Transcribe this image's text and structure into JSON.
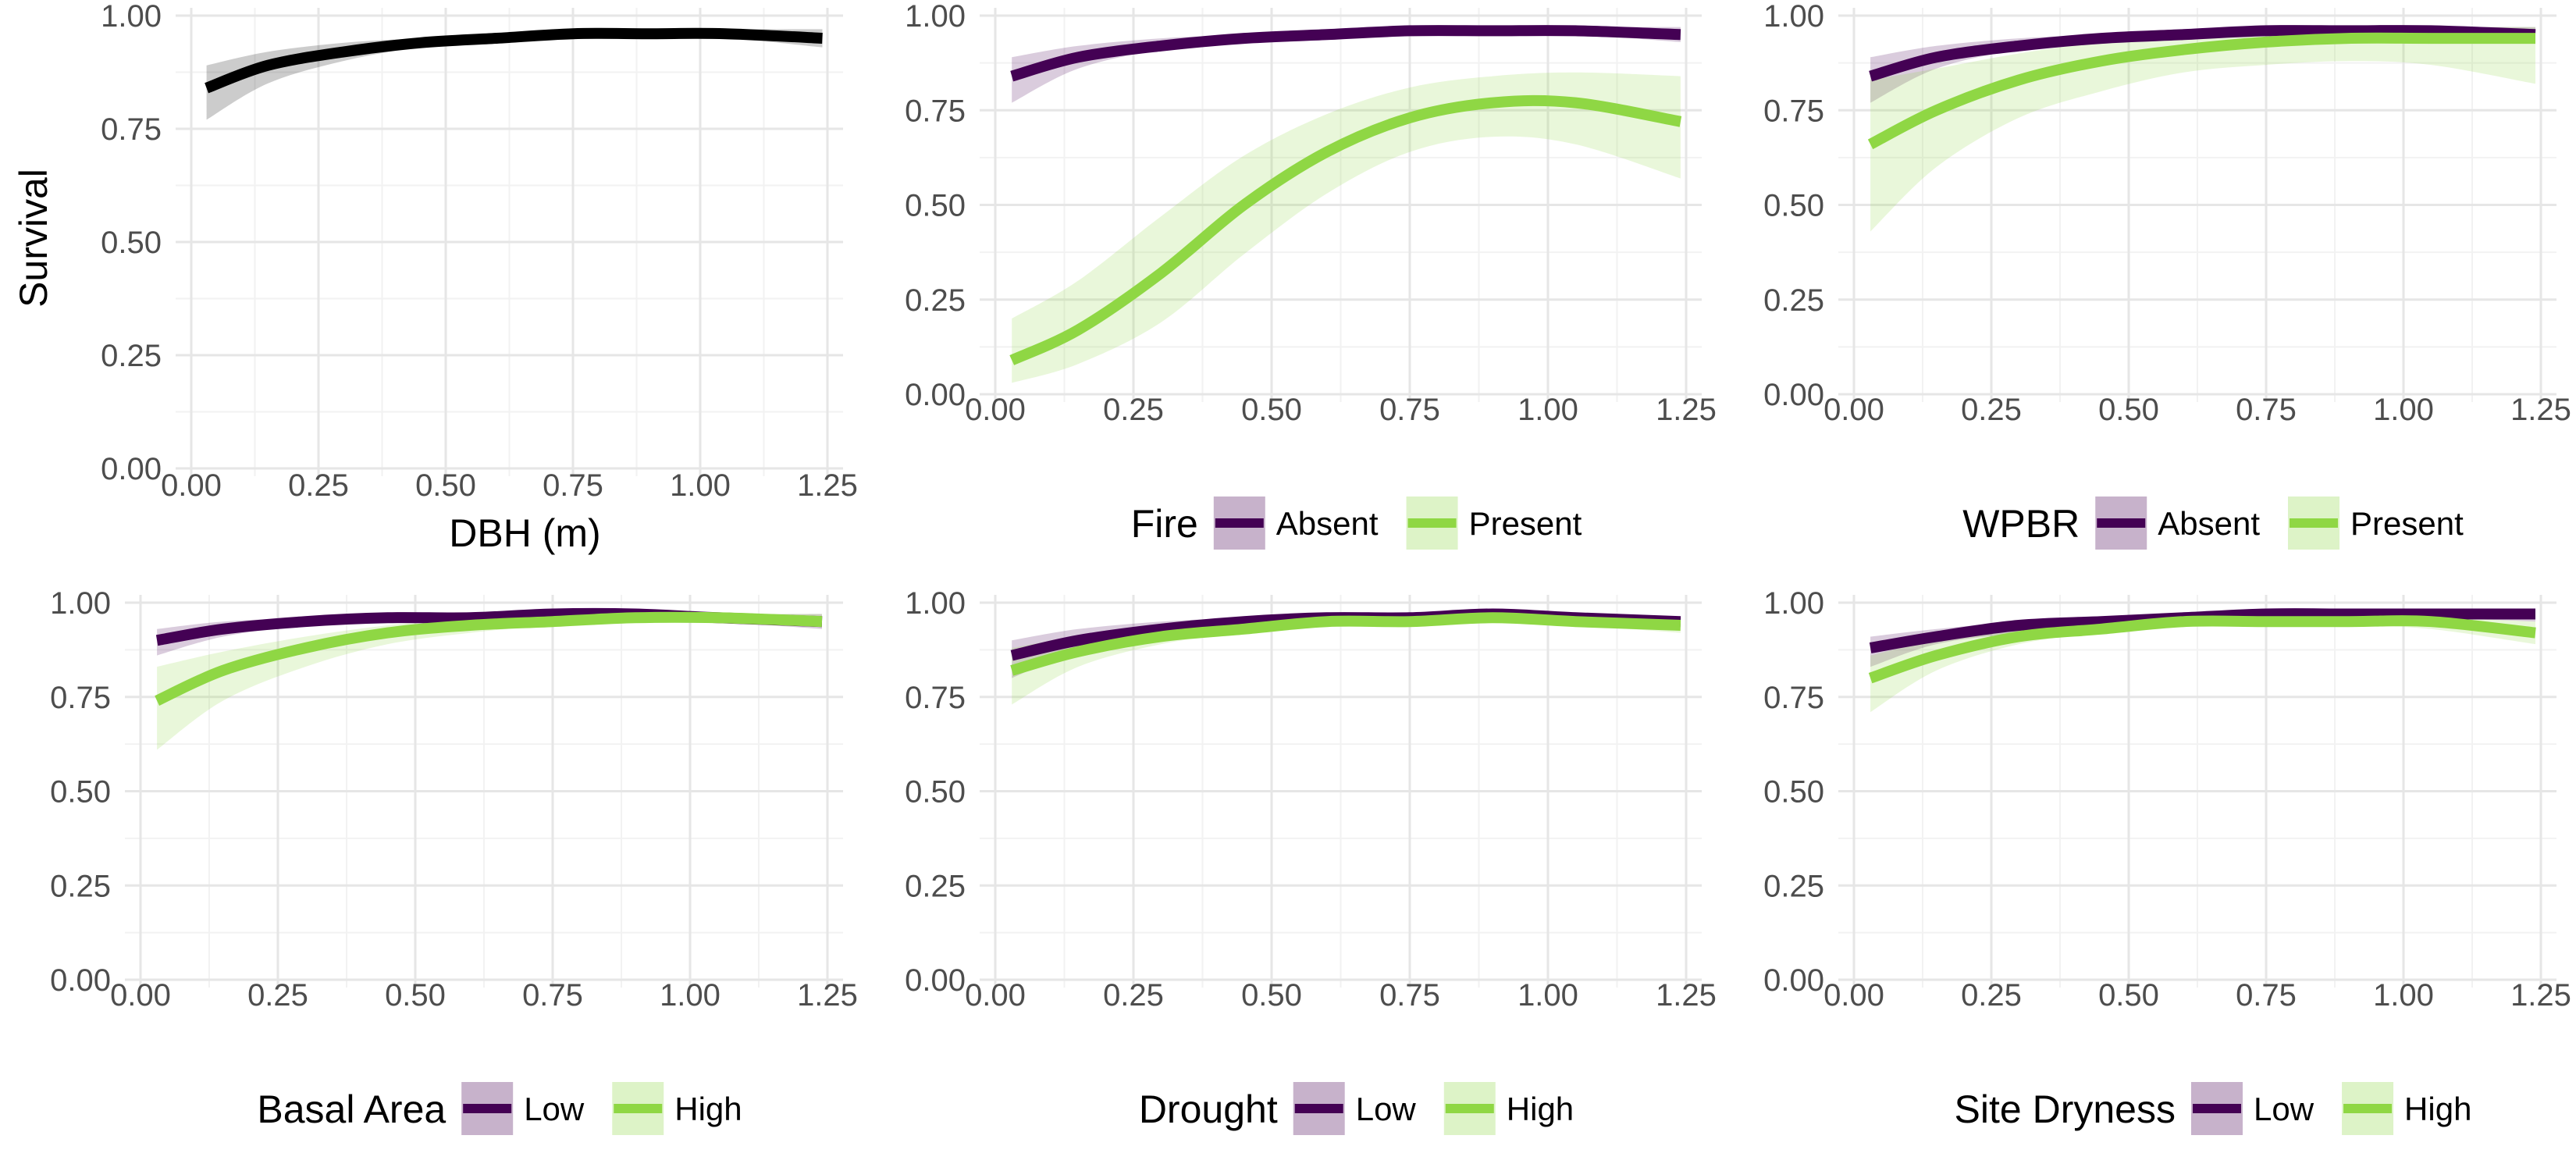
{
  "figure": {
    "y_label": "Survival",
    "colors": {
      "overall": "#000000",
      "purple": "#440154",
      "green": "#8fd744",
      "grid_major": "#e6e6e6",
      "grid_minor": "#f2f2f2",
      "tick_text": "#4d4d4d"
    }
  },
  "chart_data": [
    {
      "type": "line",
      "panel": "DBH",
      "xlabel": "DBH (m)",
      "ylabel": "Survival",
      "xlim": [
        0,
        1.25
      ],
      "ylim": [
        0,
        1
      ],
      "xticks": [
        "0.00",
        "0.25",
        "0.50",
        "0.75",
        "1.00",
        "1.25"
      ],
      "yticks": [
        "0.00",
        "0.25",
        "0.50",
        "0.75",
        "1.00"
      ],
      "x": [
        0.03,
        0.15,
        0.3,
        0.45,
        0.6,
        0.75,
        0.9,
        1.05,
        1.24
      ],
      "series": [
        {
          "key": "overall",
          "values": [
            0.84,
            0.89,
            0.92,
            0.94,
            0.95,
            0.96,
            0.96,
            0.96,
            0.95
          ],
          "lower": [
            0.77,
            0.85,
            0.9,
            0.93,
            0.94,
            0.95,
            0.95,
            0.95,
            0.93
          ],
          "upper": [
            0.89,
            0.92,
            0.94,
            0.95,
            0.96,
            0.97,
            0.97,
            0.97,
            0.97
          ]
        }
      ]
    },
    {
      "type": "line",
      "panel": "Fire",
      "xlim": [
        0,
        1.25
      ],
      "ylim": [
        0,
        1
      ],
      "xticks": [
        "0.00",
        "0.25",
        "0.50",
        "0.75",
        "1.00",
        "1.25"
      ],
      "yticks": [
        "0.00",
        "0.25",
        "0.50",
        "0.75",
        "1.00"
      ],
      "legend": {
        "title": "Fire",
        "position": "bottom"
      },
      "x": [
        0.03,
        0.15,
        0.3,
        0.45,
        0.6,
        0.75,
        0.9,
        1.05,
        1.24
      ],
      "series": [
        {
          "name": "Absent",
          "key": "purple",
          "values": [
            0.84,
            0.89,
            0.92,
            0.94,
            0.95,
            0.96,
            0.96,
            0.96,
            0.95
          ],
          "lower": [
            0.77,
            0.86,
            0.91,
            0.93,
            0.94,
            0.95,
            0.95,
            0.95,
            0.93
          ],
          "upper": [
            0.89,
            0.92,
            0.94,
            0.95,
            0.96,
            0.97,
            0.97,
            0.97,
            0.97
          ]
        },
        {
          "name": "Present",
          "key": "green",
          "values": [
            0.09,
            0.17,
            0.32,
            0.5,
            0.64,
            0.73,
            0.77,
            0.77,
            0.72
          ],
          "lower": [
            0.03,
            0.08,
            0.19,
            0.37,
            0.53,
            0.64,
            0.68,
            0.66,
            0.57
          ],
          "upper": [
            0.2,
            0.3,
            0.47,
            0.63,
            0.74,
            0.81,
            0.84,
            0.85,
            0.84
          ]
        }
      ]
    },
    {
      "type": "line",
      "panel": "WPBR",
      "xlim": [
        0,
        1.25
      ],
      "ylim": [
        0,
        1
      ],
      "xticks": [
        "0.00",
        "0.25",
        "0.50",
        "0.75",
        "1.00",
        "1.25"
      ],
      "yticks": [
        "0.00",
        "0.25",
        "0.50",
        "0.75",
        "1.00"
      ],
      "legend": {
        "title": "WPBR",
        "position": "bottom"
      },
      "x": [
        0.03,
        0.15,
        0.3,
        0.45,
        0.6,
        0.75,
        0.9,
        1.05,
        1.24
      ],
      "series": [
        {
          "name": "Absent",
          "key": "purple",
          "values": [
            0.84,
            0.89,
            0.92,
            0.94,
            0.95,
            0.96,
            0.96,
            0.96,
            0.95
          ],
          "lower": [
            0.77,
            0.86,
            0.91,
            0.93,
            0.94,
            0.95,
            0.95,
            0.95,
            0.93
          ],
          "upper": [
            0.89,
            0.92,
            0.94,
            0.95,
            0.96,
            0.97,
            0.97,
            0.97,
            0.97
          ]
        },
        {
          "name": "Present",
          "key": "green",
          "values": [
            0.66,
            0.75,
            0.83,
            0.88,
            0.91,
            0.93,
            0.94,
            0.94,
            0.94
          ],
          "lower": [
            0.43,
            0.6,
            0.73,
            0.8,
            0.85,
            0.87,
            0.88,
            0.87,
            0.82
          ],
          "upper": [
            0.83,
            0.86,
            0.9,
            0.93,
            0.95,
            0.96,
            0.97,
            0.97,
            0.97
          ]
        }
      ]
    },
    {
      "type": "line",
      "panel": "Basal Area",
      "xlim": [
        0,
        1.25
      ],
      "ylim": [
        0,
        1
      ],
      "xticks": [
        "0.00",
        "0.25",
        "0.50",
        "0.75",
        "1.00",
        "1.25"
      ],
      "yticks": [
        "0.00",
        "0.25",
        "0.50",
        "0.75",
        "1.00"
      ],
      "legend": {
        "title": "Basal Area",
        "position": "bottom"
      },
      "x": [
        0.03,
        0.15,
        0.3,
        0.45,
        0.6,
        0.75,
        0.9,
        1.05,
        1.24
      ],
      "series": [
        {
          "name": "Low",
          "key": "purple",
          "values": [
            0.9,
            0.93,
            0.95,
            0.96,
            0.96,
            0.97,
            0.97,
            0.96,
            0.95
          ],
          "lower": [
            0.86,
            0.91,
            0.94,
            0.95,
            0.96,
            0.96,
            0.96,
            0.95,
            0.93
          ],
          "upper": [
            0.93,
            0.95,
            0.96,
            0.97,
            0.97,
            0.98,
            0.98,
            0.97,
            0.97
          ]
        },
        {
          "name": "High",
          "key": "green",
          "values": [
            0.74,
            0.82,
            0.88,
            0.92,
            0.94,
            0.95,
            0.96,
            0.96,
            0.95
          ],
          "lower": [
            0.61,
            0.74,
            0.83,
            0.89,
            0.92,
            0.94,
            0.95,
            0.95,
            0.94
          ],
          "upper": [
            0.83,
            0.87,
            0.91,
            0.94,
            0.96,
            0.97,
            0.97,
            0.97,
            0.97
          ]
        }
      ]
    },
    {
      "type": "line",
      "panel": "Drought",
      "xlim": [
        0,
        1.25
      ],
      "ylim": [
        0,
        1
      ],
      "xticks": [
        "0.00",
        "0.25",
        "0.50",
        "0.75",
        "1.00",
        "1.25"
      ],
      "yticks": [
        "0.00",
        "0.25",
        "0.50",
        "0.75",
        "1.00"
      ],
      "legend": {
        "title": "Drought",
        "position": "bottom"
      },
      "x": [
        0.03,
        0.15,
        0.3,
        0.45,
        0.6,
        0.75,
        0.9,
        1.05,
        1.24
      ],
      "series": [
        {
          "name": "Low",
          "key": "purple",
          "values": [
            0.86,
            0.9,
            0.93,
            0.95,
            0.96,
            0.96,
            0.97,
            0.96,
            0.95
          ],
          "lower": [
            0.8,
            0.87,
            0.91,
            0.94,
            0.95,
            0.95,
            0.96,
            0.95,
            0.94
          ],
          "upper": [
            0.9,
            0.93,
            0.95,
            0.96,
            0.97,
            0.97,
            0.97,
            0.97,
            0.96
          ]
        },
        {
          "name": "High",
          "key": "green",
          "values": [
            0.82,
            0.87,
            0.91,
            0.93,
            0.95,
            0.95,
            0.96,
            0.95,
            0.94
          ],
          "lower": [
            0.73,
            0.83,
            0.89,
            0.92,
            0.94,
            0.94,
            0.95,
            0.94,
            0.92
          ],
          "upper": [
            0.88,
            0.91,
            0.93,
            0.95,
            0.96,
            0.96,
            0.97,
            0.96,
            0.96
          ]
        }
      ]
    },
    {
      "type": "line",
      "panel": "Site Dryness",
      "xlim": [
        0,
        1.25
      ],
      "ylim": [
        0,
        1
      ],
      "xticks": [
        "0.00",
        "0.25",
        "0.50",
        "0.75",
        "1.00",
        "1.25"
      ],
      "yticks": [
        "0.00",
        "0.25",
        "0.50",
        "0.75",
        "1.00"
      ],
      "legend": {
        "title": "Site Dryness",
        "position": "bottom"
      },
      "x": [
        0.03,
        0.15,
        0.3,
        0.45,
        0.6,
        0.75,
        0.9,
        1.05,
        1.24
      ],
      "series": [
        {
          "name": "Low",
          "key": "purple",
          "values": [
            0.88,
            0.91,
            0.94,
            0.95,
            0.96,
            0.97,
            0.97,
            0.97,
            0.97
          ],
          "lower": [
            0.83,
            0.89,
            0.92,
            0.94,
            0.95,
            0.96,
            0.96,
            0.96,
            0.95
          ],
          "upper": [
            0.91,
            0.93,
            0.95,
            0.96,
            0.97,
            0.98,
            0.98,
            0.98,
            0.98
          ]
        },
        {
          "name": "High",
          "key": "green",
          "values": [
            0.8,
            0.86,
            0.91,
            0.93,
            0.95,
            0.95,
            0.95,
            0.95,
            0.92
          ],
          "lower": [
            0.71,
            0.82,
            0.89,
            0.92,
            0.94,
            0.94,
            0.94,
            0.93,
            0.89
          ],
          "upper": [
            0.86,
            0.9,
            0.93,
            0.95,
            0.96,
            0.96,
            0.96,
            0.96,
            0.95
          ]
        }
      ]
    }
  ]
}
